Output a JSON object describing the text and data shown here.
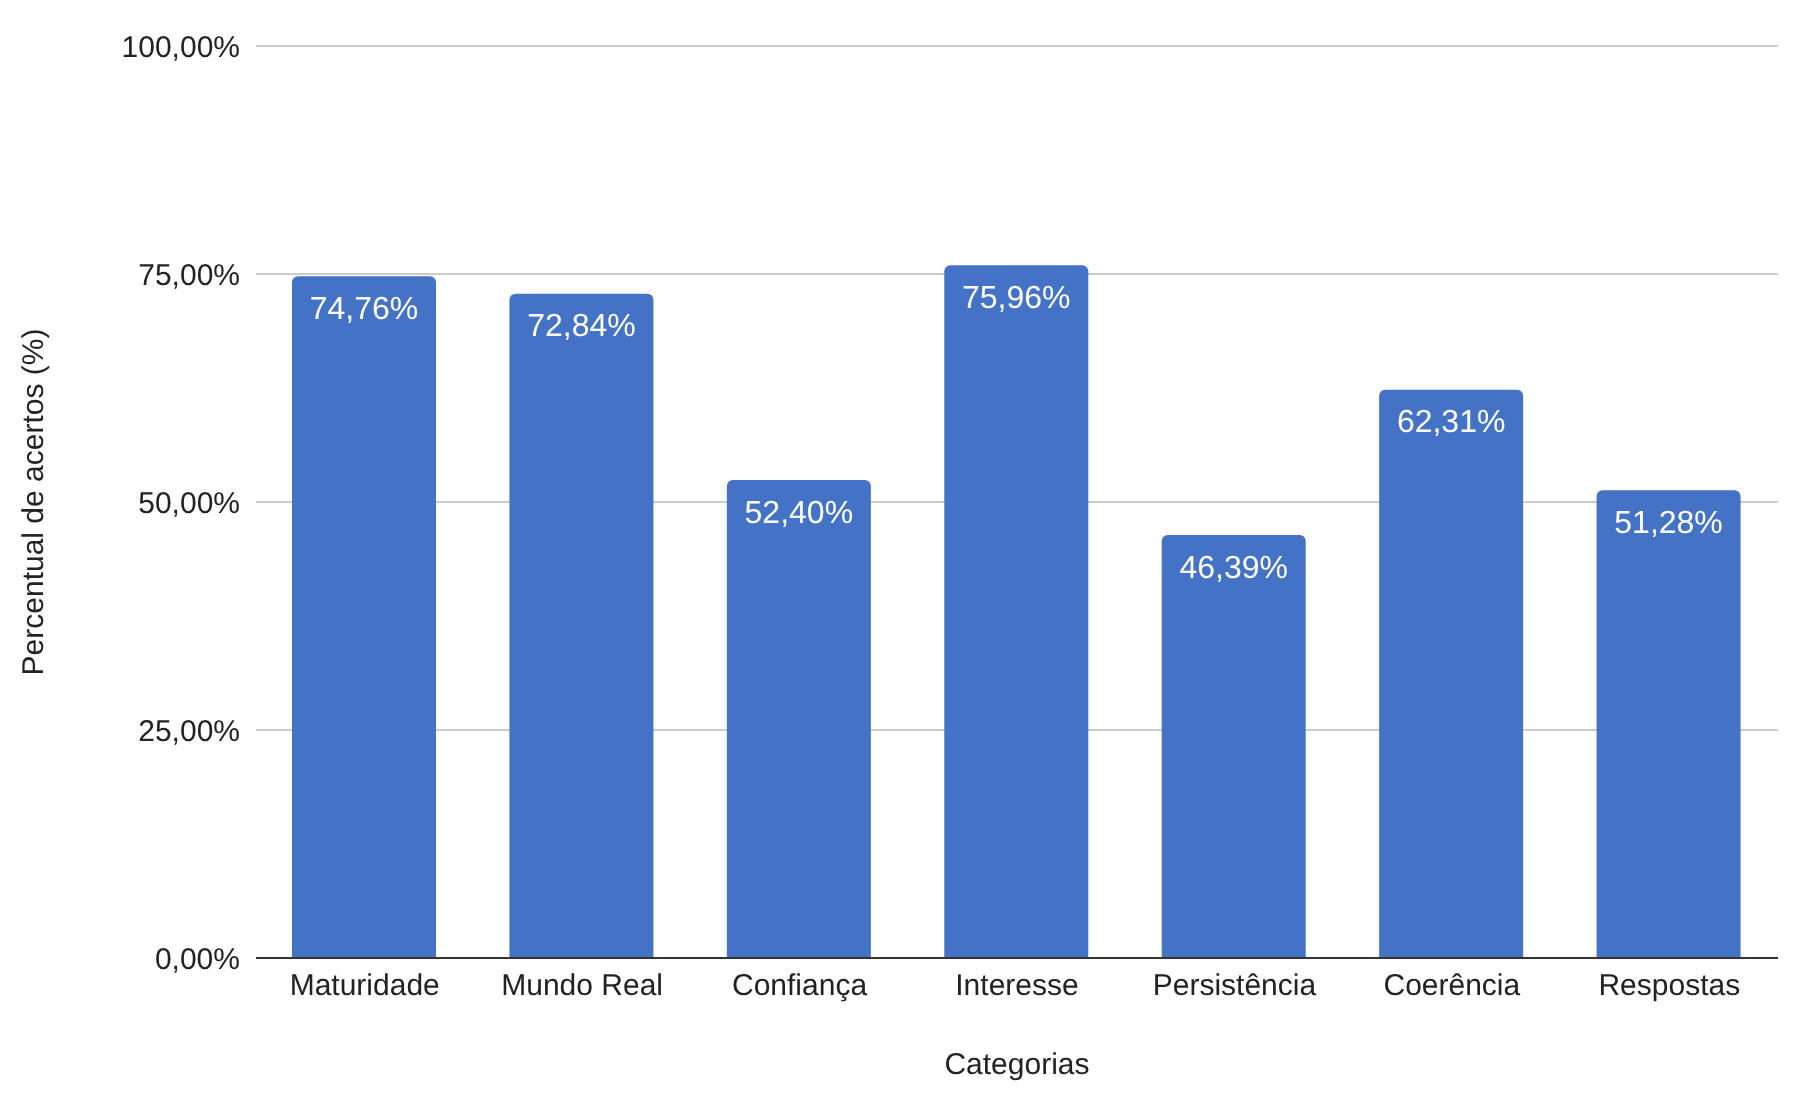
{
  "chart_data": {
    "type": "bar",
    "xlabel": "Categorias",
    "ylabel": "Percentual de acertos (%)",
    "categories": [
      "Maturidade",
      "Mundo Real",
      "Confiança",
      "Interesse",
      "Persistência",
      "Coerência",
      "Respostas"
    ],
    "values": [
      74.76,
      72.84,
      52.4,
      75.96,
      46.39,
      62.31,
      51.28
    ],
    "value_labels": [
      "74,76%",
      "72,84%",
      "52,40%",
      "75,96%",
      "46,39%",
      "62,31%",
      "51,28%"
    ],
    "color": "#4472c4",
    "ylim": [
      0,
      100
    ],
    "yticks": [
      {
        "value": 0,
        "label": "0,00%"
      },
      {
        "value": 25,
        "label": "25,00%"
      },
      {
        "value": 50,
        "label": "50,00%"
      },
      {
        "value": 75,
        "label": "75,00%"
      },
      {
        "value": 100,
        "label": "100,00%"
      }
    ],
    "grid": "y",
    "legend": false
  }
}
